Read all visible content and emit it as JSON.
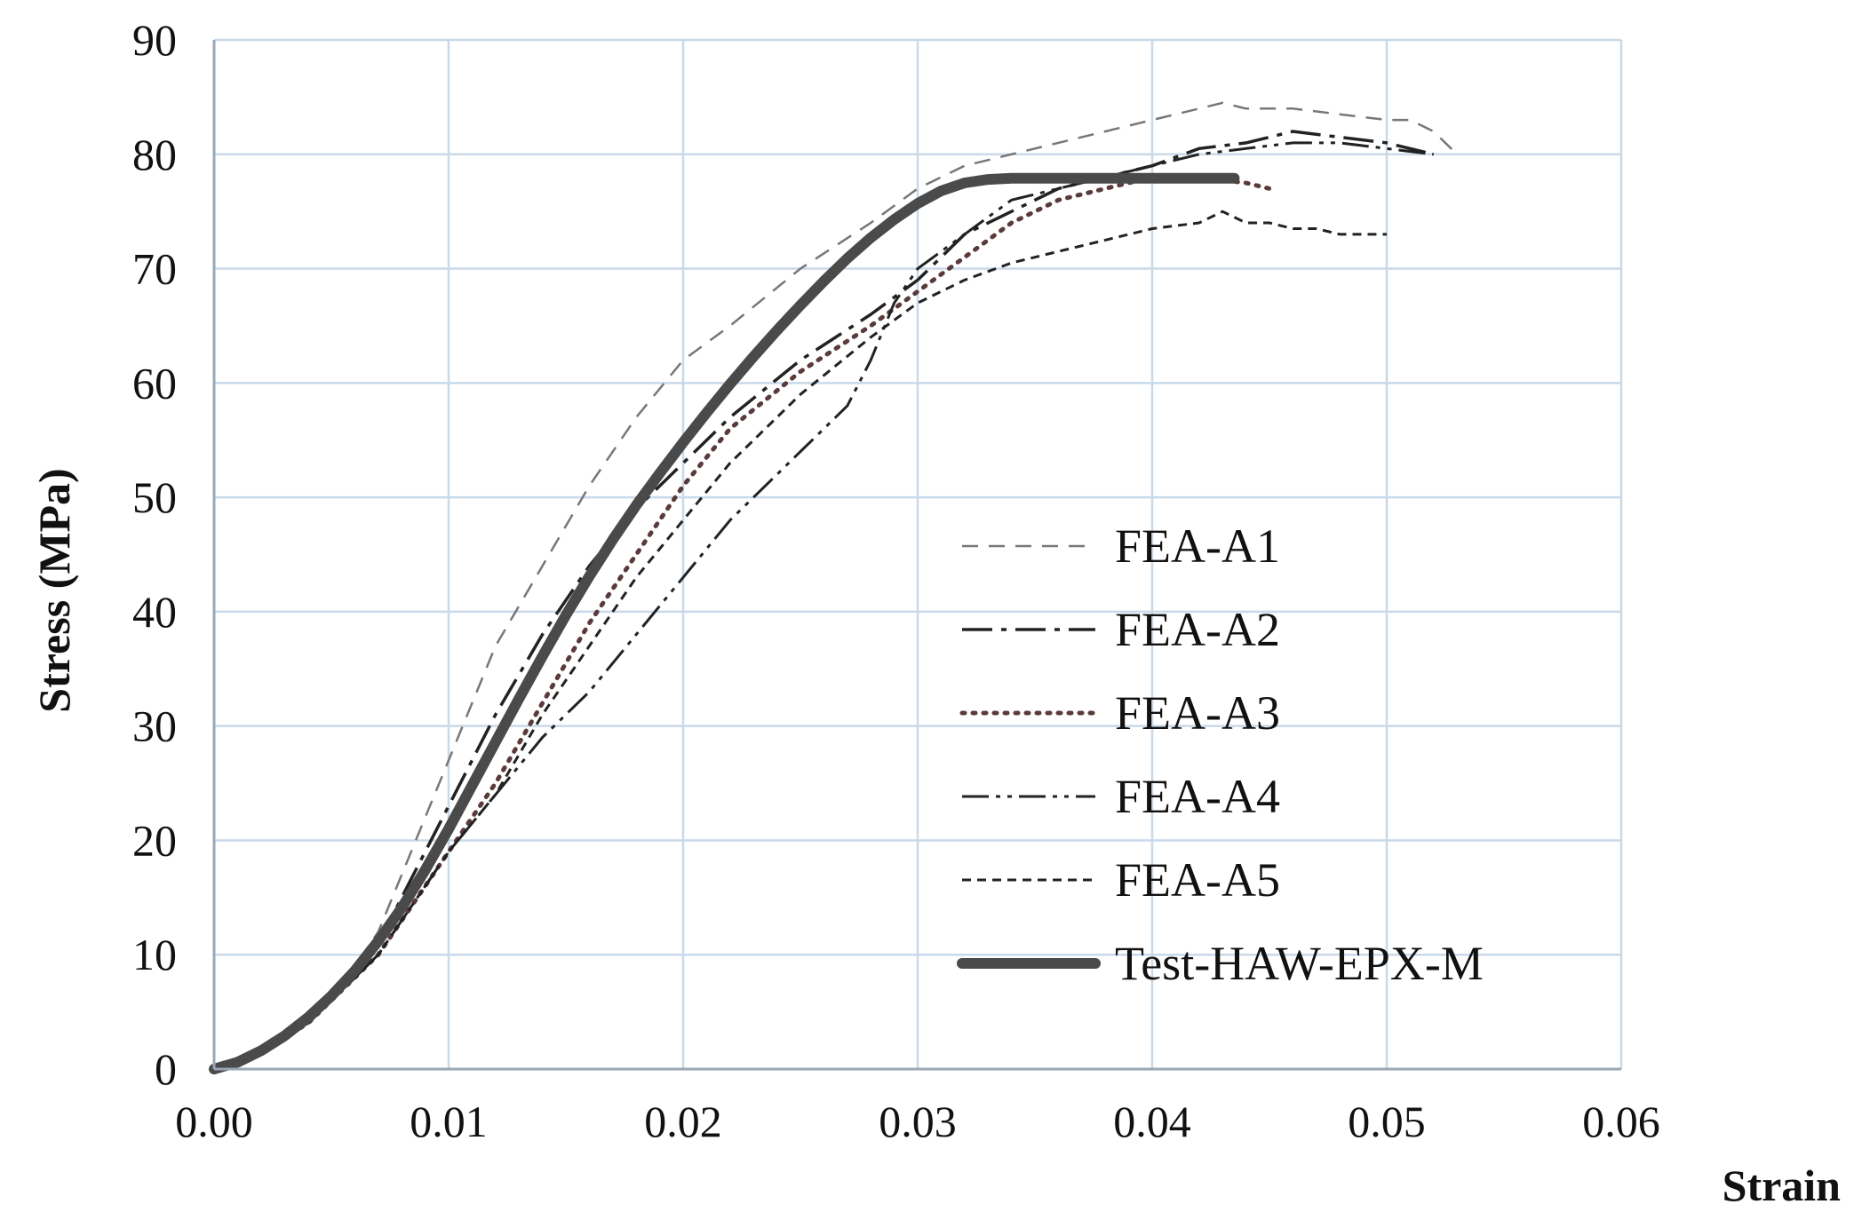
{
  "chart_data": {
    "type": "line",
    "title": "",
    "xlabel": "Strain",
    "ylabel": "Stress  (MPa)",
    "xlim": [
      0,
      0.06
    ],
    "ylim": [
      0,
      90
    ],
    "x_ticks": [
      "0.00",
      "0.01",
      "0.02",
      "0.03",
      "0.04",
      "0.05",
      "0.06"
    ],
    "y_ticks": [
      "0",
      "10",
      "20",
      "30",
      "40",
      "50",
      "60",
      "70",
      "80",
      "90"
    ],
    "grid": true,
    "grid_color": "#c8d9ea",
    "line_color": "#222222",
    "test_color": "#4a4a4a",
    "legend_position": "center-right inside plot",
    "series": [
      {
        "name": "FEA-A1",
        "style": "dashed-light",
        "x": [
          0.0,
          0.002,
          0.004,
          0.005,
          0.006,
          0.007,
          0.008,
          0.009,
          0.01,
          0.012,
          0.014,
          0.016,
          0.018,
          0.02,
          0.022,
          0.025,
          0.028,
          0.03,
          0.032,
          0.035,
          0.038,
          0.04,
          0.042,
          0.043,
          0.044,
          0.046,
          0.048,
          0.05,
          0.051,
          0.052,
          0.053
        ],
        "y": [
          0,
          1.5,
          4,
          6,
          9,
          12,
          17,
          22,
          27,
          37,
          44,
          51,
          57,
          62,
          65,
          70,
          74,
          77,
          79,
          80.5,
          82,
          83,
          84,
          84.5,
          84,
          84,
          83.5,
          83,
          83,
          82,
          80
        ]
      },
      {
        "name": "FEA-A2",
        "style": "long-dash-dot",
        "x": [
          0.0,
          0.002,
          0.004,
          0.005,
          0.006,
          0.007,
          0.008,
          0.009,
          0.01,
          0.012,
          0.014,
          0.016,
          0.018,
          0.02,
          0.022,
          0.025,
          0.028,
          0.03,
          0.032,
          0.034,
          0.036,
          0.038,
          0.04,
          0.042,
          0.044,
          0.046,
          0.048,
          0.05,
          0.052
        ],
        "y": [
          0,
          1.5,
          4,
          6,
          8,
          11,
          15,
          19,
          23,
          31,
          38,
          44,
          49,
          53,
          57,
          62,
          66,
          69,
          73,
          75,
          77,
          78,
          79,
          80.5,
          81,
          82,
          81.5,
          81,
          80
        ]
      },
      {
        "name": "FEA-A3",
        "style": "dotted",
        "x": [
          0.0,
          0.002,
          0.004,
          0.005,
          0.006,
          0.007,
          0.008,
          0.009,
          0.01,
          0.012,
          0.014,
          0.016,
          0.018,
          0.02,
          0.022,
          0.025,
          0.028,
          0.03,
          0.032,
          0.034,
          0.036,
          0.038,
          0.04,
          0.042,
          0.044,
          0.045
        ],
        "y": [
          0,
          1.5,
          4,
          6,
          8,
          10,
          13,
          16,
          19,
          25,
          32,
          39,
          45,
          51,
          56,
          61,
          65,
          68,
          71,
          74,
          76,
          77,
          78,
          78,
          77.5,
          77
        ]
      },
      {
        "name": "FEA-A4",
        "style": "long-dash-dot-dot",
        "x": [
          0.0,
          0.002,
          0.004,
          0.005,
          0.006,
          0.007,
          0.008,
          0.009,
          0.01,
          0.012,
          0.014,
          0.016,
          0.018,
          0.02,
          0.022,
          0.025,
          0.027,
          0.028,
          0.029,
          0.03,
          0.032,
          0.034,
          0.036,
          0.038,
          0.04,
          0.042,
          0.044,
          0.046,
          0.048,
          0.05,
          0.052
        ],
        "y": [
          0,
          1.5,
          4,
          6,
          8,
          10,
          13,
          16,
          19,
          24,
          29,
          33,
          38,
          43,
          48,
          54,
          58,
          62,
          67,
          70,
          73,
          76,
          77,
          78,
          79,
          80,
          80.5,
          81,
          81,
          80.5,
          80
        ]
      },
      {
        "name": "FEA-A5",
        "style": "short-dash",
        "x": [
          0.0,
          0.002,
          0.004,
          0.005,
          0.006,
          0.007,
          0.008,
          0.009,
          0.01,
          0.012,
          0.014,
          0.016,
          0.018,
          0.02,
          0.022,
          0.025,
          0.028,
          0.03,
          0.032,
          0.034,
          0.036,
          0.038,
          0.04,
          0.042,
          0.043,
          0.044,
          0.045,
          0.046,
          0.047,
          0.048,
          0.049,
          0.05
        ],
        "y": [
          0,
          1.5,
          4,
          6,
          8,
          10,
          13,
          16,
          19,
          24,
          31,
          37,
          43,
          48,
          53,
          59,
          64,
          67,
          69,
          70.5,
          71.5,
          72.5,
          73.5,
          74,
          75,
          74,
          74,
          73.5,
          73.5,
          73,
          73,
          73
        ]
      },
      {
        "name": "Test-HAW-EPX-M",
        "style": "thick-solid",
        "x": [
          0.0,
          0.001,
          0.002,
          0.003,
          0.004,
          0.005,
          0.006,
          0.007,
          0.008,
          0.009,
          0.01,
          0.011,
          0.012,
          0.013,
          0.014,
          0.015,
          0.016,
          0.017,
          0.018,
          0.019,
          0.02,
          0.021,
          0.022,
          0.023,
          0.024,
          0.025,
          0.026,
          0.027,
          0.028,
          0.029,
          0.03,
          0.031,
          0.032,
          0.033,
          0.034,
          0.035,
          0.036,
          0.037,
          0.038,
          0.039,
          0.04,
          0.041,
          0.042,
          0.043,
          0.0435
        ],
        "y": [
          0,
          0.6,
          1.6,
          2.9,
          4.5,
          6.4,
          8.6,
          11.2,
          14.1,
          17.4,
          21,
          24.8,
          28.6,
          32.4,
          36.1,
          39.7,
          43.1,
          46.3,
          49.3,
          52.1,
          54.8,
          57.4,
          59.9,
          62.3,
          64.6,
          66.8,
          68.9,
          70.9,
          72.7,
          74.3,
          75.7,
          76.8,
          77.5,
          77.8,
          77.9,
          77.9,
          77.9,
          77.9,
          77.9,
          77.9,
          77.9,
          77.9,
          77.9,
          77.9,
          77.9
        ]
      }
    ]
  }
}
